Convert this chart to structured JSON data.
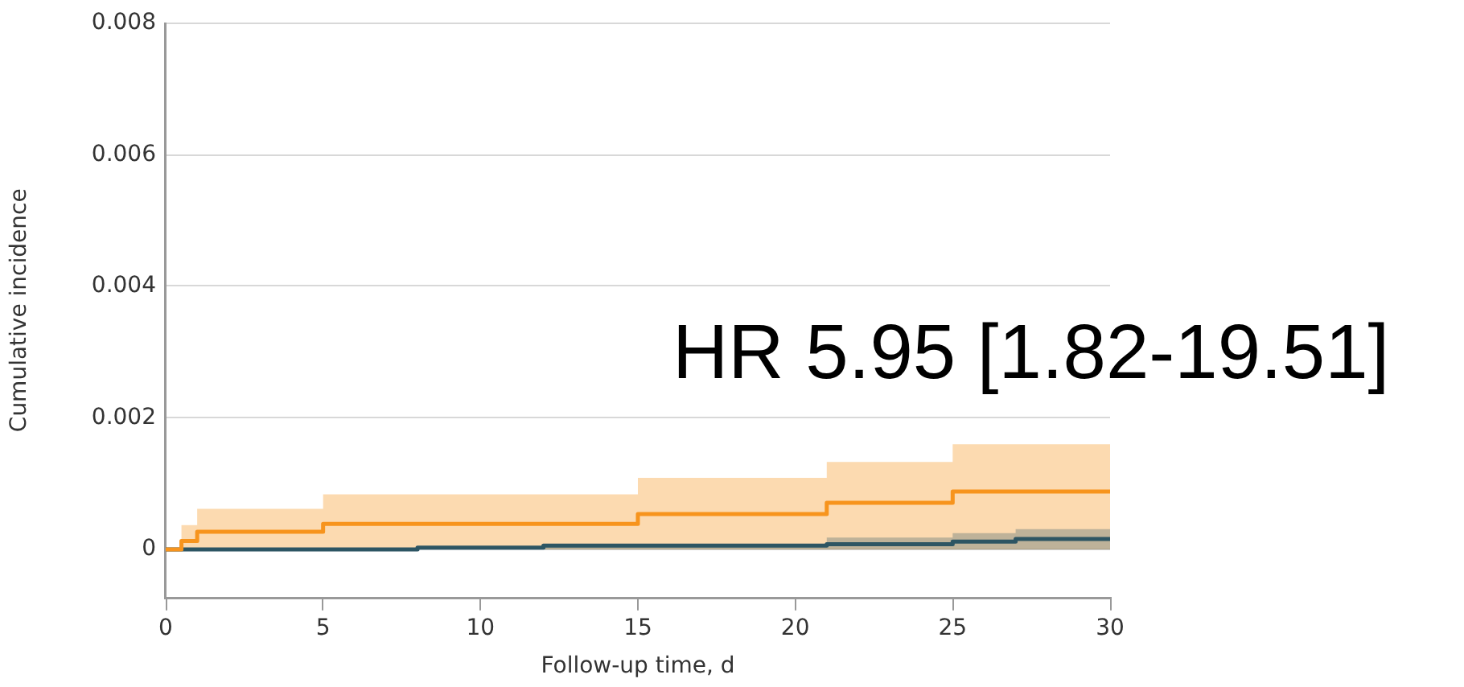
{
  "chart_data": {
    "type": "step",
    "xlabel": "Follow-up time, d",
    "ylabel": "Cumulative incidence",
    "annotations": [
      "HR 5.95 [1.82-19.51]"
    ],
    "series": [
      {
        "color": "#f7941d",
        "x": [
          0,
          0.5,
          1,
          5,
          15,
          21,
          25,
          30
        ],
        "values": [
          0,
          0.00013,
          0.00027,
          0.00039,
          0.00054,
          0.00071,
          0.00088,
          0.00088
        ],
        "lower": [
          0,
          0,
          0,
          0,
          0,
          0,
          0,
          0
        ],
        "upper": [
          0,
          0.00037,
          0.00062,
          0.00084,
          0.00109,
          0.00133,
          0.0016,
          0.0016
        ]
      },
      {
        "color": "#2d5563",
        "x": [
          0,
          8,
          12,
          21,
          25,
          27,
          30
        ],
        "values": [
          0,
          3e-05,
          6e-05,
          8e-05,
          0.00012,
          0.00016,
          0.00016
        ],
        "lower": [
          0,
          0,
          0,
          0,
          0,
          0,
          0
        ],
        "upper": [
          0,
          5e-05,
          8e-05,
          0.00018,
          0.00025,
          0.00031,
          0.00031
        ]
      }
    ],
    "xlim": [
      0,
      30
    ],
    "xticks": [
      0,
      5,
      10,
      15,
      20,
      25,
      30
    ],
    "ylim": [
      -0.00073,
      0.008
    ],
    "yticks": [
      0,
      0.002,
      0.004,
      0.006,
      0.008
    ],
    "grid": "y",
    "legend": false,
    "line_style": "solid",
    "marker": "none"
  }
}
